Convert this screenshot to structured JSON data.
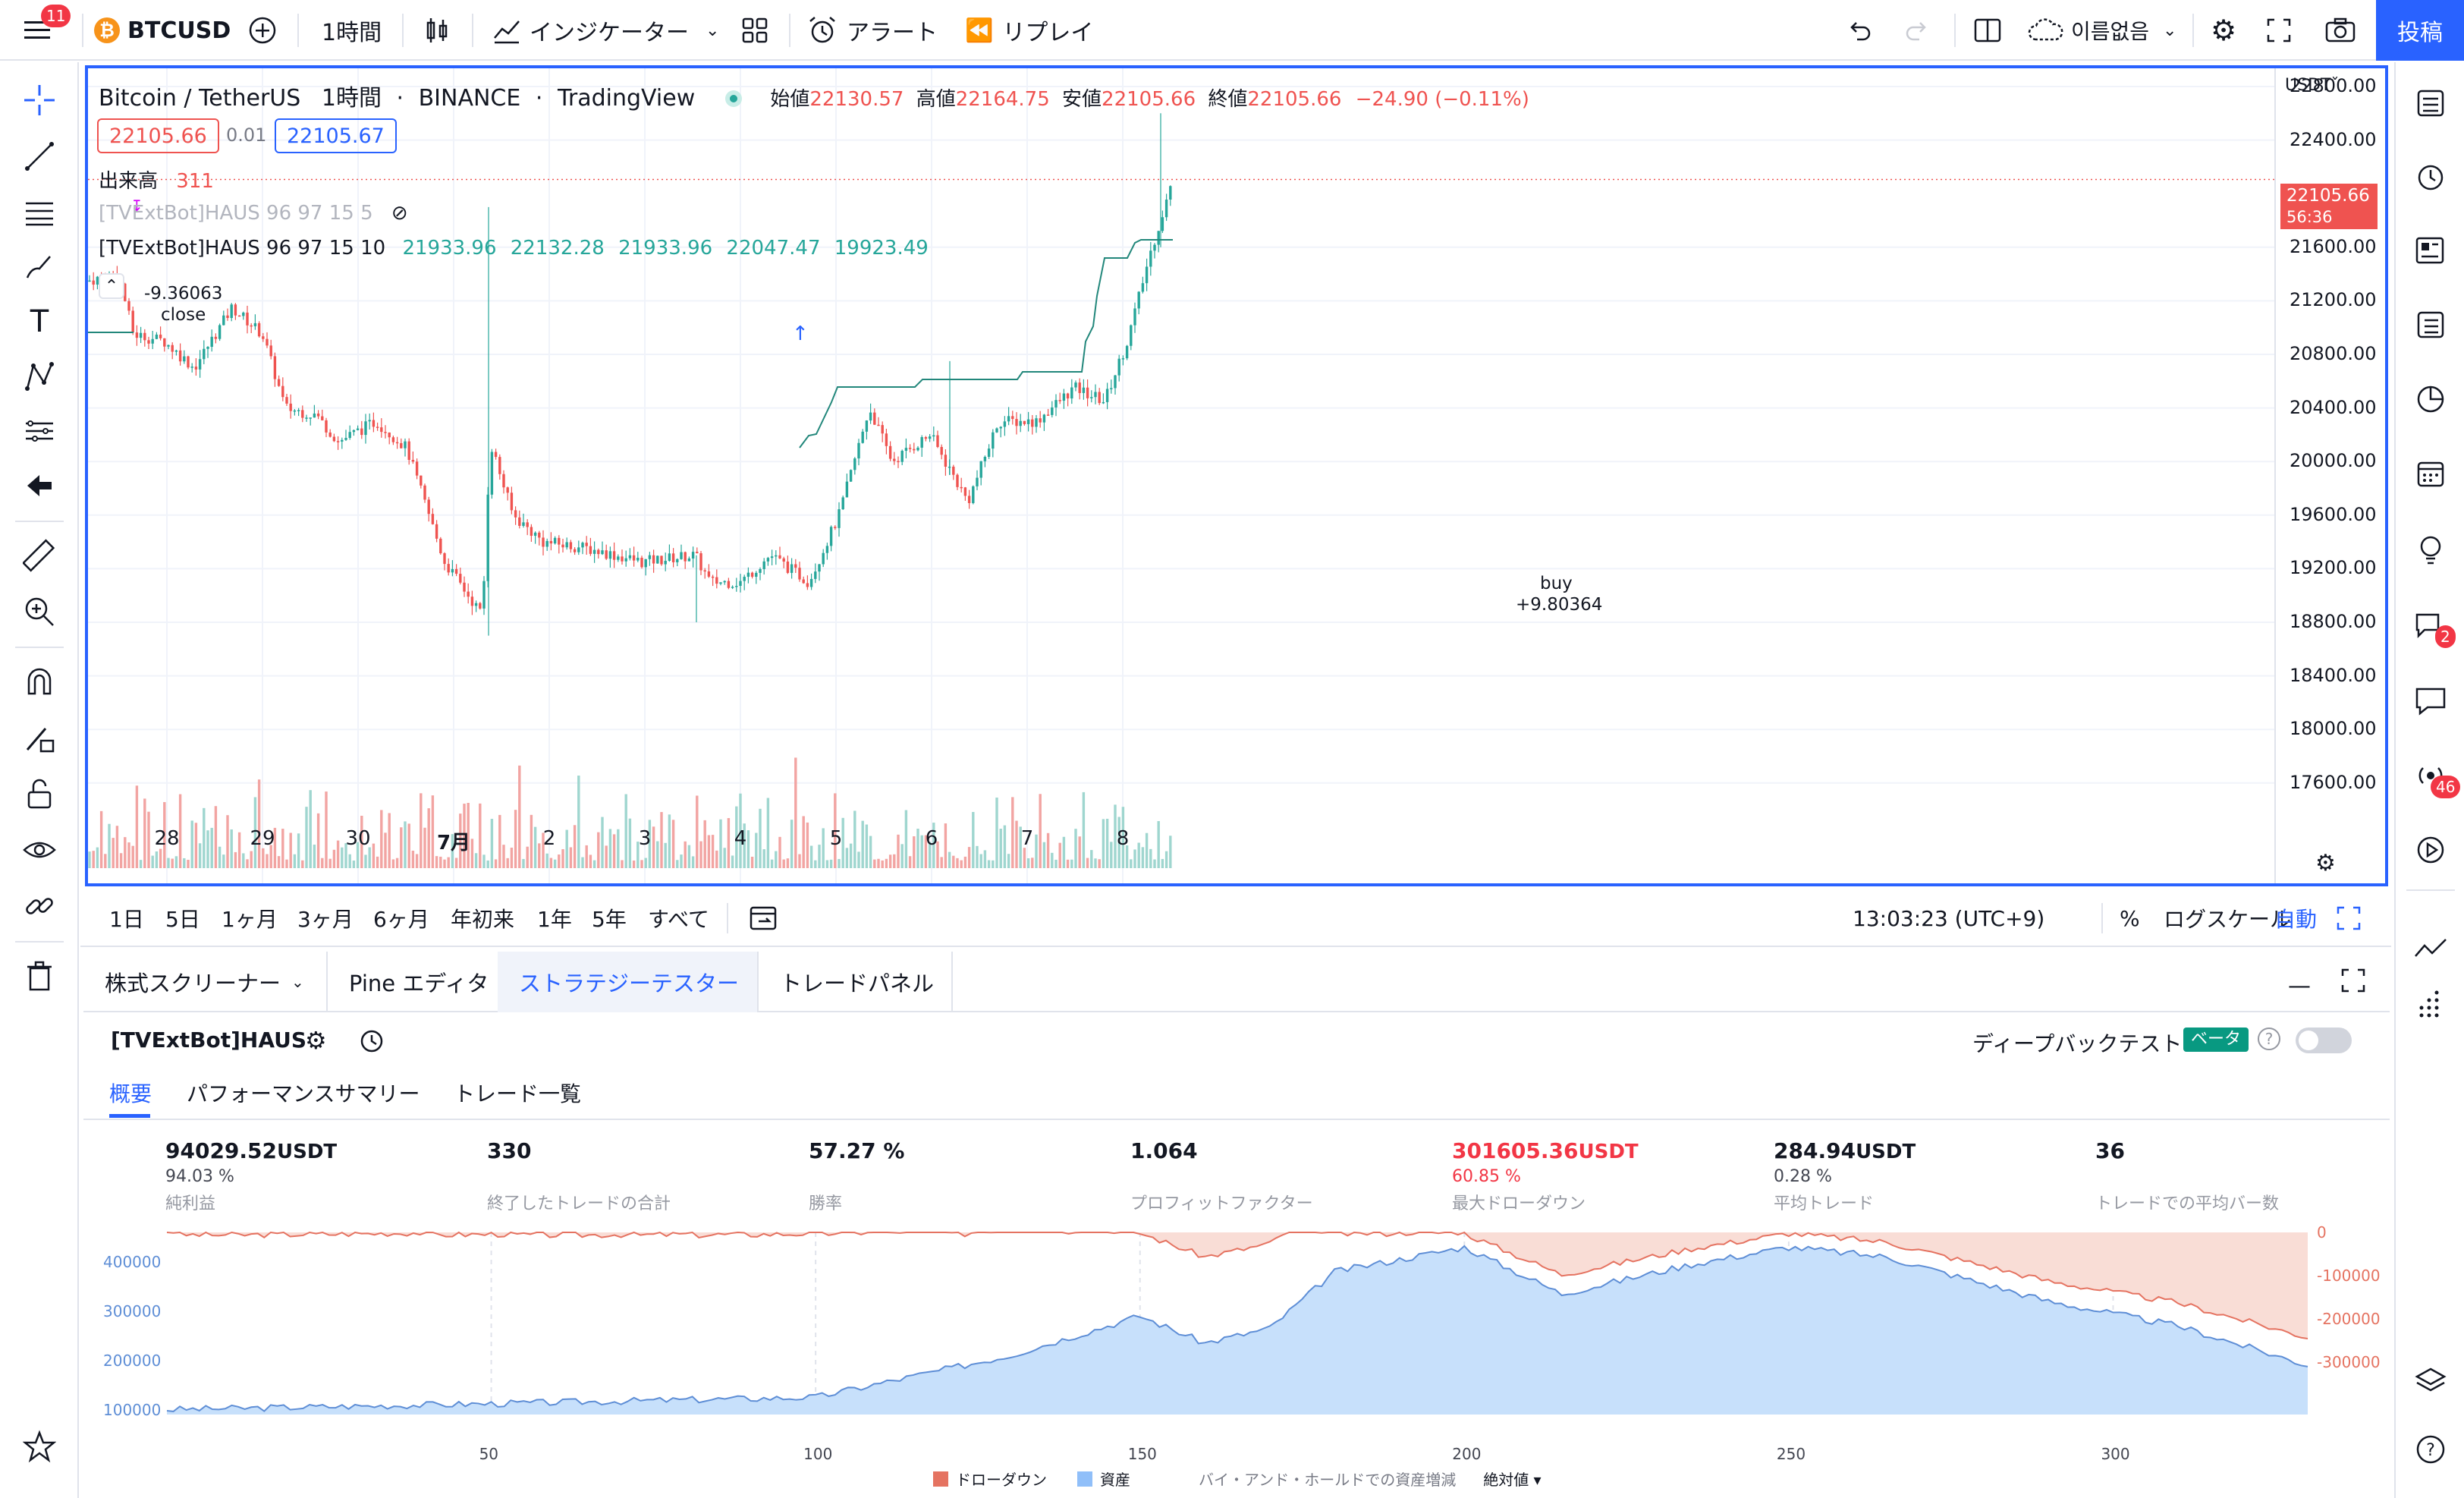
{
  "topbar": {
    "menu_badge": "11",
    "symbol": "BTCUSD",
    "interval": "1時間",
    "indicators": "インジケーター",
    "alert": "アラート",
    "replay": "リプレイ",
    "layout_name": "이름없음",
    "publish": "投稿"
  },
  "chart": {
    "title": "Bitcoin / TetherUS",
    "interval": "1時間",
    "exchange": "BINANCE",
    "source": "TradingView",
    "ohlc": {
      "open_label": "始値",
      "open": "22130.57",
      "high_label": "高値",
      "high": "22164.75",
      "low_label": "安値",
      "low": "22105.66",
      "close_label": "終値",
      "close": "22105.66",
      "change": "−24.90 (−0.11%)"
    },
    "sell_price": "22105.66",
    "spread": "0.01",
    "buy_price": "22105.67",
    "volume_label": "出来高",
    "volume_value": "311",
    "indicator1": "[TVExtBot]HAUS 96 97 15 5",
    "indicator2": "[TVExtBot]HAUS 96 97 15 10",
    "indicator2_values": [
      "21933.96",
      "22132.28",
      "21933.96",
      "22047.47",
      "19923.49"
    ],
    "currency": "USDT",
    "last_price": "22105.66",
    "countdown": "56:36",
    "annotation_close_value": "-9.36063",
    "annotation_close": "close",
    "annotation_buy": "buy",
    "annotation_buy_value": "+9.80364",
    "y_ticks": [
      "22800.00",
      "22400.00",
      "21600.00",
      "21200.00",
      "20800.00",
      "20400.00",
      "20000.00",
      "19600.00",
      "19200.00",
      "18800.00",
      "18400.00",
      "18000.00",
      "17600.00"
    ],
    "x_ticks": [
      "28",
      "29",
      "30",
      "7月",
      "2",
      "3",
      "4",
      "5",
      "6",
      "7",
      "8"
    ]
  },
  "rangebar": {
    "ranges": [
      "1日",
      "5日",
      "1ヶ月",
      "3ヶ月",
      "6ヶ月",
      "年初来",
      "1年",
      "5年",
      "すべて"
    ],
    "time": "13:03:23 (UTC+9)",
    "percent": "%",
    "log": "ログスケール",
    "auto": "自動"
  },
  "panel": {
    "tabs": [
      "株式スクリーナー",
      "Pine エディタ",
      "ストラテジーテスター",
      "トレードパネル"
    ],
    "strategy": "[TVExtBot]HAUS",
    "deep_backtest": "ディープバックテスト",
    "beta": "ベータ",
    "subtabs": [
      "概要",
      "パフォーマンスサマリー",
      "トレード一覧"
    ],
    "stats": [
      {
        "value": "94029.52",
        "unit": "USDT",
        "sub": "94.03 %",
        "label": "純利益"
      },
      {
        "value": "330",
        "unit": "",
        "sub": "",
        "label": "終了したトレードの合計"
      },
      {
        "value": "57.27 %",
        "unit": "",
        "sub": "",
        "label": "勝率"
      },
      {
        "value": "1.064",
        "unit": "",
        "sub": "",
        "label": "プロフィットファクター"
      },
      {
        "value": "301605.36",
        "unit": "USDT",
        "sub": "60.85 %",
        "label": "最大ドローダウン"
      },
      {
        "value": "284.94",
        "unit": "USDT",
        "sub": "0.28 %",
        "label": "平均トレード"
      },
      {
        "value": "36",
        "unit": "",
        "sub": "",
        "label": "トレードでの平均バー数"
      }
    ],
    "equity_left_ticks": [
      "400000",
      "300000",
      "200000",
      "100000"
    ],
    "equity_right_ticks": [
      "0",
      "-100000",
      "-200000",
      "-300000"
    ],
    "equity_x_ticks": [
      "50",
      "100",
      "150",
      "200",
      "250",
      "300"
    ],
    "legend": {
      "drawdown": "ドローダウン",
      "equity": "資産",
      "buyhold": "バイ・アンド・ホールドでの資産増減",
      "mode": "絶対値"
    }
  },
  "colors": {
    "accent": "#2962ff",
    "up": "#26a69a",
    "down": "#ef5350",
    "orange": "#f7931a"
  }
}
